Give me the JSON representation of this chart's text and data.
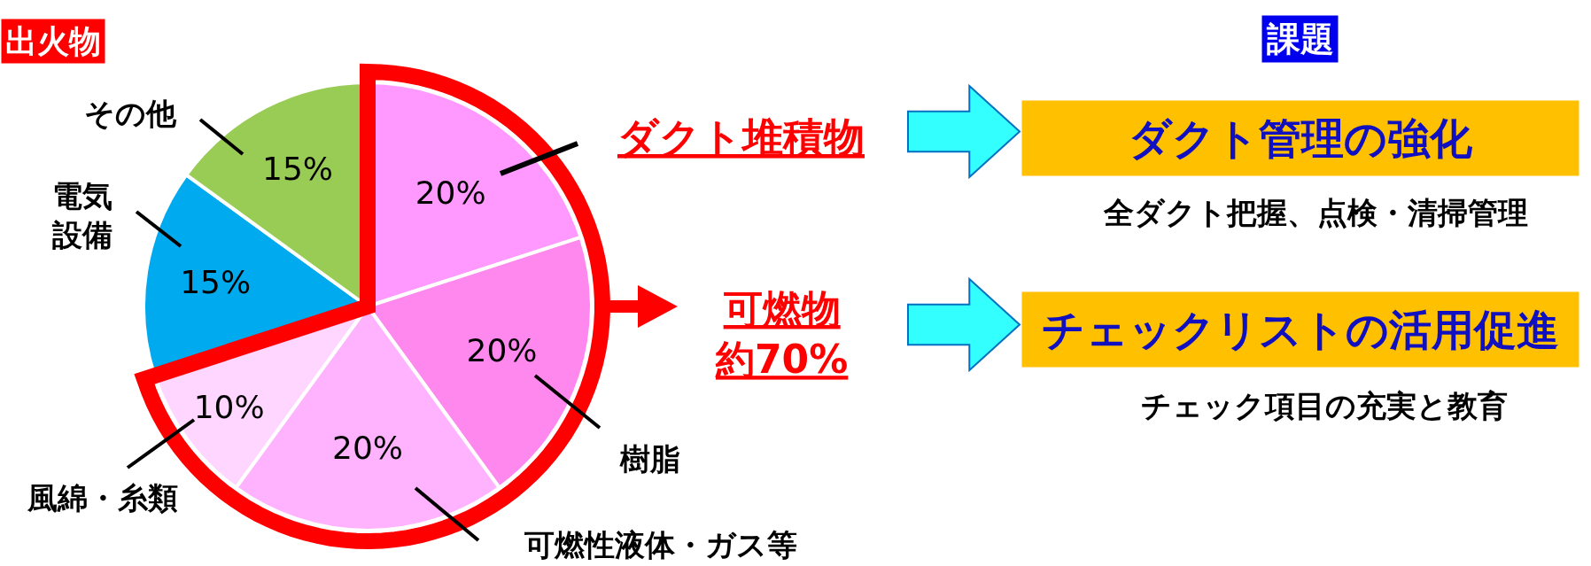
{
  "chart_data": {
    "type": "pie",
    "title": "出火物",
    "categories": [
      "ダクト堆積物",
      "樹脂",
      "可燃性液体・ガス等",
      "風綿・糸類",
      "電気設備",
      "その他"
    ],
    "values": [
      20,
      20,
      20,
      10,
      15,
      15
    ],
    "value_labels": [
      "20%",
      "20%",
      "20%",
      "10%",
      "15%",
      "15%"
    ],
    "colors": [
      "#ff99ff",
      "#ff88ee",
      "#ffb3ff",
      "#ffd6ff",
      "#00aaee",
      "#99cc55"
    ],
    "legend": false,
    "annotations": [
      "課題",
      "可燃物約70%",
      "ダクト管理の強化",
      "全ダクト把握、点検・清掃管理",
      "チェックリストの活用促進",
      "チェック項目の充実と教育"
    ]
  }
}
